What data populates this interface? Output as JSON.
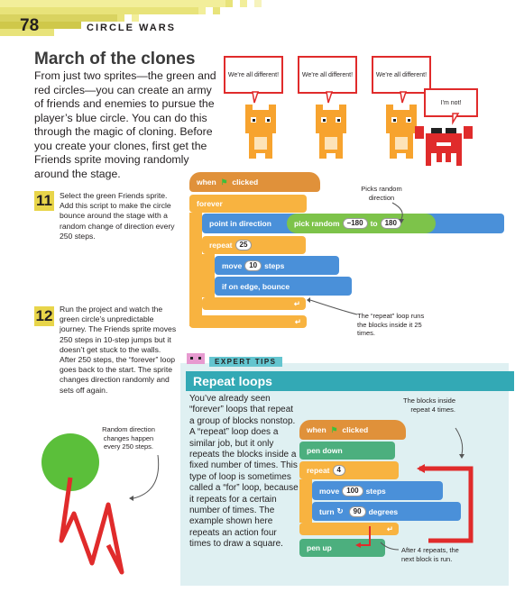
{
  "header": {
    "page_number": "78",
    "section": "CIRCLE WARS"
  },
  "intro": {
    "title": "March of the clones",
    "body": "From just two sprites—the green and red circles—you can create an army of friends and enemies to pursue the player’s blue circle. You can do this through the magic of cloning. Before you create your clones, first get the Friends sprite moving randomly around the stage."
  },
  "bubbles": [
    "We’re all different!",
    "We’re all different!",
    "We’re all different!",
    "I’m not!"
  ],
  "steps": [
    {
      "number": "11",
      "text": "Select the green Friends sprite. Add this script to make the circle bounce around the stage with a random change of direction every 250 steps."
    },
    {
      "number": "12",
      "text": "Run the project and watch the green circle’s unpredictable journey. The Friends sprite moves 250 steps in 10-step jumps but it doesn’t get stuck to the walls. After 250 steps, the “forever” loop goes back to the start. The sprite changes direction randomly and sets off again."
    }
  ],
  "script1": {
    "when": "when",
    "clicked": "clicked",
    "forever": "forever",
    "point": "point in direction",
    "pick": "pick random",
    "r1": "−180",
    "to": "to",
    "r2": "180",
    "repeat": "repeat",
    "repeat_n": "25",
    "move": "move",
    "move_n": "10",
    "steps": "steps",
    "bounce": "if on edge, bounce"
  },
  "notes": {
    "picks_random": "Picks random direction",
    "repeat_loop": "The “repeat” loop runs the blocks inside it 25 times.",
    "random_direction": "Random direction changes happen every 250 steps.",
    "blocks_inside": "The blocks inside repeat 4 times.",
    "after_four": "After 4 repeats, the next block is run."
  },
  "tips": {
    "label": "EXPERT TIPS",
    "title": "Repeat loops",
    "body": "You’ve already seen “forever” loops that repeat a group of blocks nonstop. A “repeat” loop does a similar job, but it only repeats the blocks inside a fixed number of times. This type of loop is sometimes called a “for” loop, because it repeats for a certain number of times. The example shown here repeats an action four times to draw a square."
  },
  "script2": {
    "when": "when",
    "clicked": "clicked",
    "pen_down": "pen down",
    "repeat": "repeat",
    "repeat_n": "4",
    "move": "move",
    "move_n": "100",
    "steps": "steps",
    "turn": "turn",
    "turn_n": "90",
    "degrees": "degrees",
    "pen_up": "pen up"
  },
  "colors": {
    "event": "#e0913a",
    "control": "#f8b340",
    "motion": "#4a90d9",
    "operator": "#7dc34a",
    "pen": "#4caf7e",
    "accent_red": "#e02b2b",
    "tips_bg": "#dff0f2",
    "tips_title": "#33a9b5"
  }
}
